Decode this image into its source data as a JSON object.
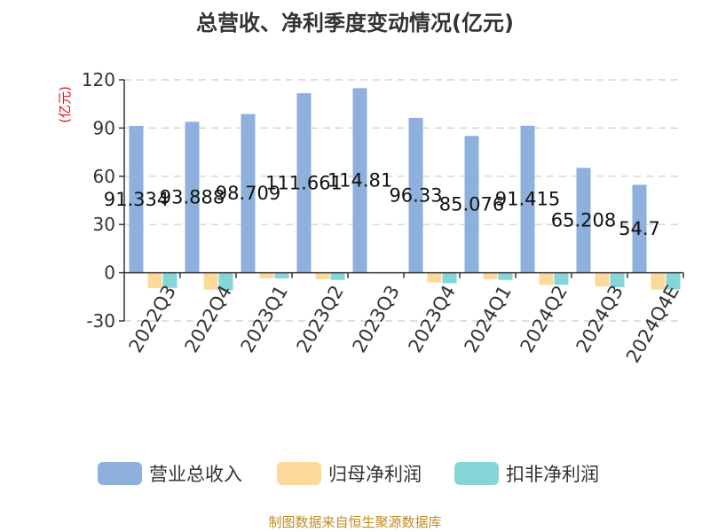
{
  "chart_data": {
    "type": "bar",
    "title": "总营收、净利季度变动情况(亿元)",
    "ylabel": "(亿元)",
    "xlabel": "",
    "ylim": [
      -30,
      120
    ],
    "yticks": [
      -30,
      0,
      30,
      60,
      90,
      120
    ],
    "grid": true,
    "legend_position": "bottom",
    "categories": [
      "2022Q3",
      "2022Q4",
      "2023Q1",
      "2023Q2",
      "2023Q3",
      "2023Q4",
      "2024Q1",
      "2024Q2",
      "2024Q3",
      "2024Q4E"
    ],
    "series": [
      {
        "name": "营业总收入",
        "color": "#8eb0dc",
        "values": [
          91.334,
          93.888,
          98.709,
          111.661,
          114.81,
          96.33,
          85.076,
          91.415,
          65.208,
          54.7
        ],
        "labels": [
          "91.334",
          "93.888",
          "98.709",
          "111.661",
          "114.81",
          "96.33",
          "85.076",
          "91.415",
          "65.208",
          "54.7"
        ]
      },
      {
        "name": "归母净利润",
        "color": "#fdd89b",
        "values": [
          -9.5,
          -10.5,
          -3.5,
          -4.0,
          -0.5,
          -6.0,
          -4.0,
          -7.5,
          -8.5,
          -10.5
        ]
      },
      {
        "name": "扣非净利润",
        "color": "#86d5d9",
        "values": [
          -9.5,
          -11.0,
          -3.5,
          -4.5,
          -0.5,
          -6.5,
          -4.5,
          -7.5,
          -9.0,
          -10.5
        ]
      }
    ]
  },
  "source": "制图数据来自恒生聚源数据库"
}
